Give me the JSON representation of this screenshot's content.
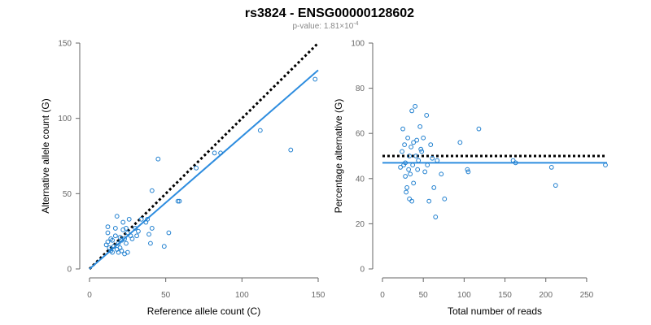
{
  "title": "rs3824 - ENSG00000128602",
  "subtitle": {
    "prefix": "p-value: 1.81×10",
    "exponent": "-4"
  },
  "colors": {
    "points": "#1f7fcf",
    "fit_line": "#2e8ddf",
    "reference_line": "#000000",
    "axis": "#666666"
  },
  "chart_data": [
    {
      "type": "scatter",
      "xlabel": "Reference allele count (C)",
      "ylabel": "Alternative allele count (G)",
      "xlim": [
        0,
        150
      ],
      "ylim": [
        0,
        150
      ],
      "x_ticks": [
        0,
        50,
        100,
        150
      ],
      "y_ticks": [
        0,
        50,
        100,
        150
      ],
      "grid": false,
      "points": [
        {
          "x": 12,
          "y": 28
        },
        {
          "x": 12,
          "y": 24
        },
        {
          "x": 11,
          "y": 16
        },
        {
          "x": 12,
          "y": 18
        },
        {
          "x": 13,
          "y": 14
        },
        {
          "x": 14,
          "y": 12
        },
        {
          "x": 14,
          "y": 20
        },
        {
          "x": 15,
          "y": 19
        },
        {
          "x": 15,
          "y": 11
        },
        {
          "x": 16,
          "y": 15
        },
        {
          "x": 17,
          "y": 22
        },
        {
          "x": 17,
          "y": 27
        },
        {
          "x": 18,
          "y": 35
        },
        {
          "x": 18,
          "y": 13
        },
        {
          "x": 19,
          "y": 17
        },
        {
          "x": 19,
          "y": 11
        },
        {
          "x": 20,
          "y": 21
        },
        {
          "x": 20,
          "y": 14
        },
        {
          "x": 21,
          "y": 19
        },
        {
          "x": 21,
          "y": 12
        },
        {
          "x": 22,
          "y": 31
        },
        {
          "x": 22,
          "y": 26
        },
        {
          "x": 23,
          "y": 20
        },
        {
          "x": 23,
          "y": 10
        },
        {
          "x": 24,
          "y": 27
        },
        {
          "x": 24,
          "y": 17
        },
        {
          "x": 25,
          "y": 24
        },
        {
          "x": 25,
          "y": 11
        },
        {
          "x": 26,
          "y": 33
        },
        {
          "x": 27,
          "y": 22
        },
        {
          "x": 28,
          "y": 20
        },
        {
          "x": 30,
          "y": 27
        },
        {
          "x": 31,
          "y": 22
        },
        {
          "x": 32,
          "y": 25
        },
        {
          "x": 34,
          "y": 33
        },
        {
          "x": 37,
          "y": 31
        },
        {
          "x": 38,
          "y": 33
        },
        {
          "x": 39,
          "y": 23
        },
        {
          "x": 40,
          "y": 17
        },
        {
          "x": 41,
          "y": 27
        },
        {
          "x": 41,
          "y": 52
        },
        {
          "x": 45,
          "y": 73
        },
        {
          "x": 49,
          "y": 15
        },
        {
          "x": 52,
          "y": 24
        },
        {
          "x": 58,
          "y": 45
        },
        {
          "x": 59,
          "y": 45
        },
        {
          "x": 70,
          "y": 67
        },
        {
          "x": 82,
          "y": 77
        },
        {
          "x": 86,
          "y": 77
        },
        {
          "x": 112,
          "y": 92
        },
        {
          "x": 132,
          "y": 79
        },
        {
          "x": 148,
          "y": 126
        }
      ],
      "fit_line": {
        "x": [
          0,
          150
        ],
        "y": [
          0,
          132
        ]
      },
      "reference_line": {
        "x": [
          0,
          150
        ],
        "y": [
          0,
          150
        ]
      }
    },
    {
      "type": "scatter",
      "xlabel": "Total number of reads",
      "ylabel": "Percentage alternative (G)",
      "xlim": [
        0,
        275
      ],
      "ylim": [
        0,
        100
      ],
      "x_ticks": [
        0,
        50,
        100,
        150,
        200,
        250
      ],
      "y_ticks": [
        0,
        20,
        40,
        60,
        80,
        100
      ],
      "grid": false,
      "points": [
        {
          "x": 22,
          "y": 45
        },
        {
          "x": 24,
          "y": 52
        },
        {
          "x": 25,
          "y": 62
        },
        {
          "x": 26,
          "y": 46
        },
        {
          "x": 27,
          "y": 55
        },
        {
          "x": 28,
          "y": 41
        },
        {
          "x": 28,
          "y": 47
        },
        {
          "x": 29,
          "y": 34
        },
        {
          "x": 30,
          "y": 36
        },
        {
          "x": 31,
          "y": 58
        },
        {
          "x": 32,
          "y": 44
        },
        {
          "x": 33,
          "y": 50
        },
        {
          "x": 33,
          "y": 31
        },
        {
          "x": 34,
          "y": 42
        },
        {
          "x": 35,
          "y": 54
        },
        {
          "x": 36,
          "y": 30
        },
        {
          "x": 36,
          "y": 70
        },
        {
          "x": 37,
          "y": 46
        },
        {
          "x": 38,
          "y": 38
        },
        {
          "x": 38,
          "y": 56
        },
        {
          "x": 40,
          "y": 72
        },
        {
          "x": 41,
          "y": 50
        },
        {
          "x": 42,
          "y": 57
        },
        {
          "x": 43,
          "y": 44
        },
        {
          "x": 44,
          "y": 48
        },
        {
          "x": 46,
          "y": 63
        },
        {
          "x": 47,
          "y": 53
        },
        {
          "x": 48,
          "y": 52
        },
        {
          "x": 50,
          "y": 58
        },
        {
          "x": 52,
          "y": 43
        },
        {
          "x": 54,
          "y": 68
        },
        {
          "x": 55,
          "y": 46
        },
        {
          "x": 57,
          "y": 30
        },
        {
          "x": 59,
          "y": 55
        },
        {
          "x": 61,
          "y": 49
        },
        {
          "x": 63,
          "y": 36
        },
        {
          "x": 65,
          "y": 23
        },
        {
          "x": 67,
          "y": 48
        },
        {
          "x": 72,
          "y": 42
        },
        {
          "x": 76,
          "y": 31
        },
        {
          "x": 95,
          "y": 56
        },
        {
          "x": 104,
          "y": 44
        },
        {
          "x": 105,
          "y": 43
        },
        {
          "x": 118,
          "y": 62
        },
        {
          "x": 160,
          "y": 48
        },
        {
          "x": 163,
          "y": 47
        },
        {
          "x": 207,
          "y": 45
        },
        {
          "x": 212,
          "y": 37
        },
        {
          "x": 273,
          "y": 46
        }
      ],
      "fit_line": {
        "x": [
          0,
          275
        ],
        "y": [
          47,
          47
        ]
      },
      "reference_line": {
        "x": [
          0,
          275
        ],
        "y": [
          50,
          50
        ]
      }
    }
  ]
}
